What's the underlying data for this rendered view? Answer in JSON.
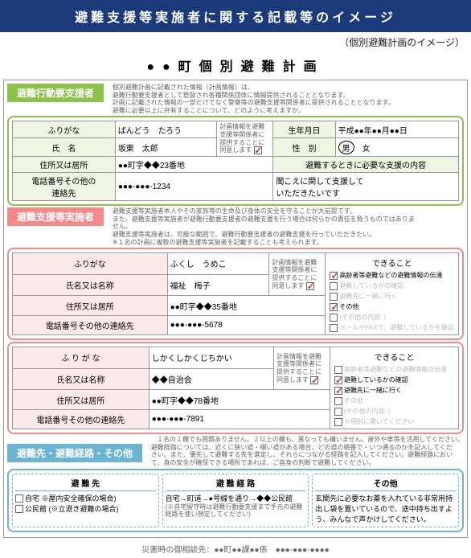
{
  "header_title": "避難支援等実施者に関する記載等のイメージ",
  "subtitle": "（個別避難計画のイメージ）",
  "main_title": "●●町個別避難計画",
  "section1": {
    "label": "避難行動要支援者",
    "hint": "個別避難計画に記載された情報（計画情報）は、\n避難行動要支援者として登録され各種関係団体に情報提供されることとなります。\n計画に記載された情報の一部だけでなく警察等の避難支援等関係者に提供されることとなります。\n避難に必要以上に共有することについて、どのように考えますか。",
    "rows": {
      "furigana_lbl": "ふりがな",
      "furigana": "ばんどう　たろう",
      "regbox": "計画情報を避難\n支援等関係者に\n提供することに\n同意します",
      "birth_lbl": "生年月日",
      "birth": "平成●●年●●月●●日",
      "name_lbl": "氏　名",
      "name": "坂東　太郎",
      "sex_lbl": "性　別",
      "sex_m": "男",
      "sex_f": "女",
      "addr_lbl": "住所又は居所",
      "addr": "●●町字◆◆23番地",
      "support_lbl": "避難するときに必要な支援の内容",
      "tel_lbl": "電話番号その他の\n連絡先",
      "tel": "●●●-●●●-1234",
      "support_text": "聞こえに関して支援して\nいただきたいです"
    }
  },
  "section2": {
    "label": "避難支援等実施者",
    "hint": "避難支援等実施者本人やその家族等の生命及び身体の安全を守ることが大前提です。\nまた、避難支援等実施者が避難行動要支援者の避難支援を行う場合は何らかの責任を負うものではありません。\n避難支援等実施者は、可能な範囲で、避難行動要支援者の避難支援を行っていただきたい。\n※１名の計画に複数の避難支援等実施者を記載することも考えられます。",
    "p1": {
      "furigana_lbl": "ふりがな",
      "furigana": "ふくし　うめこ",
      "regbox": "計画情報を避難\n支援等関係者に\n提供することに\n同意します",
      "name_lbl": "氏名又は名称",
      "name": "福祉　梅子",
      "addr_lbl": "住所又は居所",
      "addr": "●●町字◆◆35番地",
      "tel_lbl": "電話番号その他の連絡先",
      "tel": "●●●-●●●-5678",
      "cando_title": "できること",
      "cando": [
        {
          "t": "高齢者等避難などの避難情報の伝達",
          "on": true
        },
        {
          "t": "避難しているかの確認",
          "on": false
        },
        {
          "t": "避難先に一緒に行く",
          "on": false
        },
        {
          "t": "その他",
          "on": true
        },
        {
          "t": "(その他の内容: )",
          "on": false
        },
        {
          "t": "メールやFAXで、避難しているかを確認",
          "on": false
        }
      ]
    },
    "p2": {
      "furigana_lbl": "ふ り が な",
      "furigana": "しかくしかくじちかい",
      "regbox": "計画情報を避難\n支援等関係者に\n提供することに\n同意します",
      "name_lbl": "氏名又は名称",
      "name": "◆◆自治会",
      "addr_lbl": "住所又は居所",
      "addr": "●●町字◆◆78番地",
      "tel_lbl": "電話番号その他の連絡先",
      "tel": "●●●-●●●-7891",
      "cando_title": "できること",
      "cando": [
        {
          "t": "高齢者等避難などの避難情報の伝達",
          "on": false
        },
        {
          "t": "避難しているかの確認",
          "on": true
        },
        {
          "t": "避難先に一緒に行く",
          "on": true
        },
        {
          "t": "その他",
          "on": false
        },
        {
          "t": "(その他の内容: )",
          "on": false
        },
        {
          "t": "※個別に書いてください",
          "on": false
        }
      ]
    },
    "note": "１名の１欄でも問題ありません。２以上の欄も、異なっても構いません。屋外や車等を活用してください。"
  },
  "section3": {
    "label": "避難先・避難経路・その他",
    "hint": "避難経路については、近くに狭い道・細い道がある場合、どの道の順番で・いつ通るのかを記入してください。また、優先して避難する先を選定し、それらにつながる経路を記入してください。避難経路において、身の安全が確保できる場所であれば、ご自身の判断で避難してください。",
    "dest_title": "避 難 先",
    "dest_items": [
      "自宅 ※屋内安全確保の場合)",
      "公民館 (※立退き避難の場合)"
    ],
    "route_title": "避 難 経 路",
    "route_text": "自宅→町道→●号線を通り→◆◆公民館",
    "route_note": "(※自宅留守時は避難行動要支援まで手元の避難経路を使い想定してください)",
    "other_title": "その他",
    "other_text": "玄関先に必要なお薬を入れている非常用持出し袋を置いているので、途中持ち出すよう、みんなで声かけしてください。"
  },
  "footer": "災害時の御相談先：●●町●●課●●係　●●●-●●●-●●●●"
}
